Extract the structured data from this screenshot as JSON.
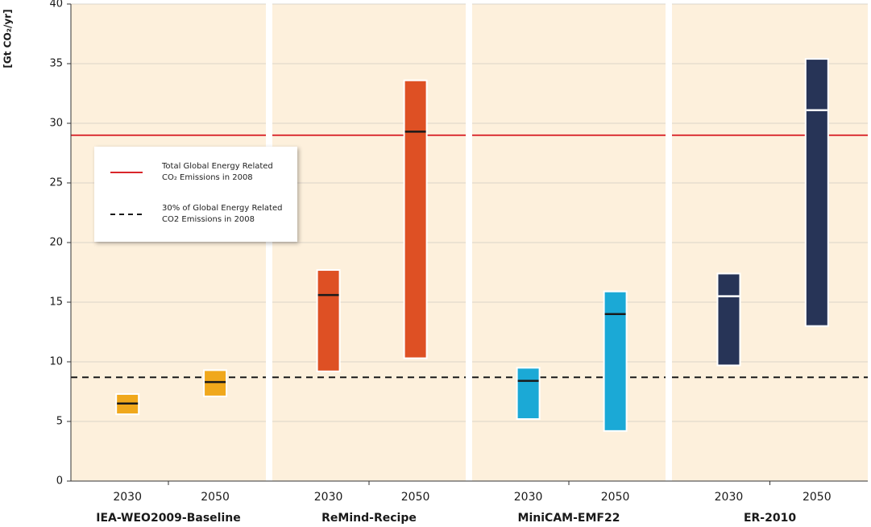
{
  "chart_data": {
    "type": "range-bar",
    "y_label": "[Gt CO₂/yr]",
    "ylim": [
      0,
      40
    ],
    "yticks": [
      0,
      5,
      10,
      15,
      20,
      25,
      30,
      35,
      40
    ],
    "grid": true,
    "panels": [
      {
        "name": "IEA-WEO2009-Baseline",
        "color": "#f0a81c",
        "median_color": "#1a1a1a",
        "categories": [
          "2030",
          "2050"
        ],
        "low": [
          5.6,
          7.1
        ],
        "high": [
          7.3,
          9.3
        ],
        "median": [
          6.5,
          8.3
        ]
      },
      {
        "name": "ReMind-Recipe",
        "color": "#de5024",
        "median_color": "#1a1a1a",
        "categories": [
          "2030",
          "2050"
        ],
        "low": [
          9.2,
          10.3
        ],
        "high": [
          17.7,
          33.6
        ],
        "median": [
          15.6,
          29.3
        ]
      },
      {
        "name": "MiniCAM-EMF22",
        "color": "#1ba9d6",
        "median_color": "#1a1a1a",
        "categories": [
          "2030",
          "2050"
        ],
        "low": [
          5.2,
          4.2
        ],
        "high": [
          9.5,
          15.9
        ],
        "median": [
          8.4,
          14.0
        ]
      },
      {
        "name": "ER-2010",
        "color": "#273457",
        "median_color": "#ffffff",
        "categories": [
          "2030",
          "2050"
        ],
        "low": [
          9.7,
          13.0
        ],
        "high": [
          17.4,
          35.4
        ],
        "median": [
          15.5,
          31.1
        ]
      }
    ],
    "reference_lines": [
      {
        "value": 29,
        "label": "Total Global Energy Related CO₂ Emissions in 2008",
        "color": "#d9262b",
        "style": "solid"
      },
      {
        "value": 8.7,
        "label": "30% of Global Energy Related CO2 Emissions in 2008",
        "color": "#1a1a1a",
        "style": "dashed"
      }
    ]
  }
}
